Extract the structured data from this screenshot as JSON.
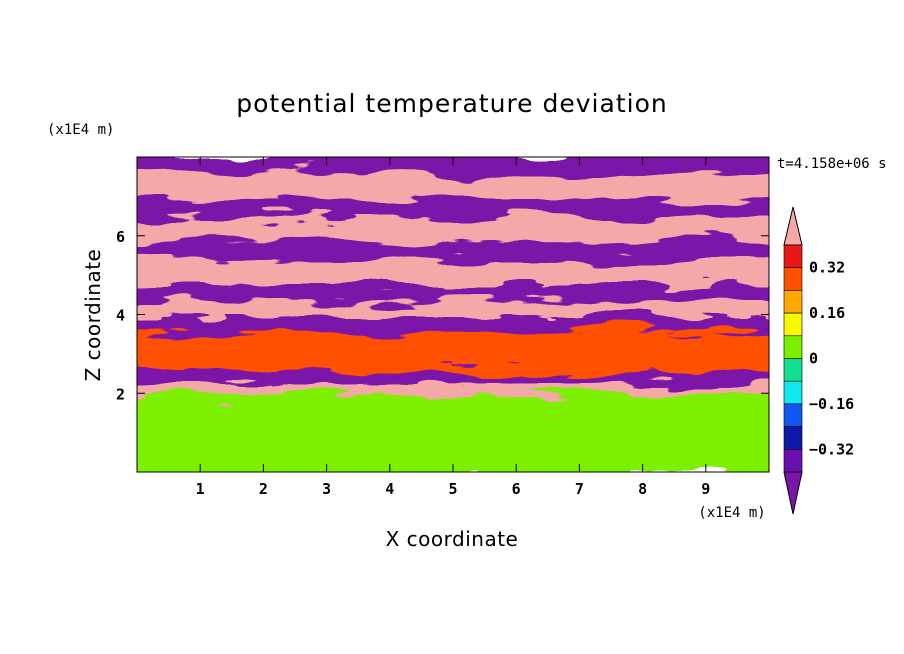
{
  "chart_data": {
    "type": "heatmap",
    "title": "potential temperature deviation",
    "xlabel": "X coordinate",
    "ylabel": "Z coordinate",
    "x_unit": "(x1E4 m)",
    "y_unit": "(x1E4 m)",
    "time_label": "t=4.158e+06 s",
    "xlim": [
      0,
      10
    ],
    "ylim": [
      0,
      8
    ],
    "x_ticks": [
      "1",
      "2",
      "3",
      "4",
      "5",
      "6",
      "7",
      "8",
      "9"
    ],
    "y_ticks": [
      "2",
      "4",
      "6"
    ],
    "colorbar": {
      "levels": [
        {
          "max": -0.4,
          "color": "#7b16a8"
        },
        {
          "max": -0.32,
          "color": "#6a0fb0"
        },
        {
          "max": -0.24,
          "color": "#1018a8"
        },
        {
          "max": -0.16,
          "color": "#1058f0"
        },
        {
          "max": -0.08,
          "color": "#10e8f0"
        },
        {
          "max": 0,
          "color": "#12e090"
        },
        {
          "max": 0.08,
          "color": "#7cf000"
        },
        {
          "max": 0.16,
          "color": "#f8f800"
        },
        {
          "max": 0.24,
          "color": "#ffa800"
        },
        {
          "max": 0.32,
          "color": "#ff5000"
        },
        {
          "max": 0.4,
          "color": "#e81818"
        },
        {
          "max": 99,
          "color": "#f4a8a8"
        }
      ],
      "tick_labels": [
        "0.32",
        "0.16",
        "0",
        "−0.16",
        "−0.32"
      ]
    },
    "field_description": {
      "layers": [
        {
          "z": [
            0,
            2.0
          ],
          "value": 0.04
        },
        {
          "z": [
            2.0,
            2.3
          ],
          "value": 0.45
        },
        {
          "z": [
            2.3,
            2.6
          ],
          "value": -0.45
        },
        {
          "z": [
            2.6,
            3.6
          ],
          "value": 0.3
        },
        {
          "z": [
            3.6,
            4.0
          ],
          "value": -0.45
        },
        {
          "z": [
            4.0,
            4.4
          ],
          "value": 0.45
        },
        {
          "z": [
            4.4,
            4.8
          ],
          "value": -0.45
        },
        {
          "z": [
            4.8,
            5.4
          ],
          "value": 0.45
        },
        {
          "z": [
            5.4,
            5.9
          ],
          "value": -0.45
        },
        {
          "z": [
            5.9,
            6.5
          ],
          "value": 0.45
        },
        {
          "z": [
            6.5,
            7.0
          ],
          "value": -0.45
        },
        {
          "z": [
            7.0,
            7.6
          ],
          "value": 0.45
        },
        {
          "z": [
            7.6,
            8.0
          ],
          "value": -0.45
        }
      ]
    }
  }
}
